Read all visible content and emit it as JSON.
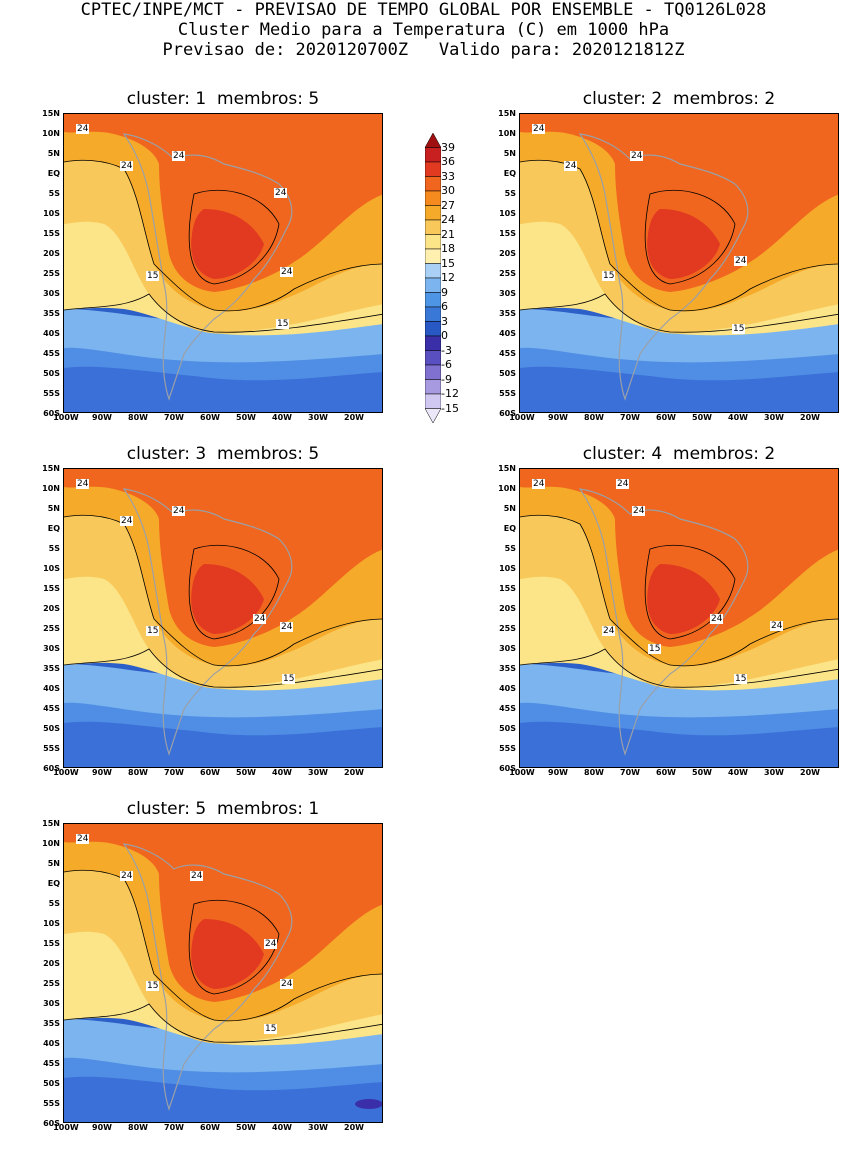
{
  "header": {
    "line1": "CPTEC/INPE/MCT - PREVISAO DE TEMPO GLOBAL POR ENSEMBLE - TQ0126L028",
    "line2": "Cluster Medio para a Temperatura (C) em 1000 hPa",
    "line3": "Previsao de: 2020120700Z   Valido para: 2020121812Z"
  },
  "lat_labels": [
    "15N",
    "10N",
    "5N",
    "EQ",
    "5S",
    "10S",
    "15S",
    "20S",
    "25S",
    "30S",
    "35S",
    "40S",
    "45S",
    "50S",
    "55S",
    "60S"
  ],
  "lon_labels": [
    "100W",
    "90W",
    "80W",
    "70W",
    "60W",
    "50W",
    "40W",
    "30W",
    "20W"
  ],
  "colorbar": {
    "labels": [
      "39",
      "36",
      "33",
      "30",
      "27",
      "24",
      "21",
      "18",
      "15",
      "12",
      "9",
      "6",
      "3",
      "0",
      "-3",
      "-6",
      "-9",
      "-12",
      "-15"
    ],
    "colors": [
      "#a01010",
      "#c82020",
      "#e23a20",
      "#f0661e",
      "#f58a1e",
      "#f6aa2a",
      "#f8c95a",
      "#fce488",
      "#fff0b0",
      "#aad0f5",
      "#7bb4ee",
      "#4f95e6",
      "#3a78d8",
      "#2858c4",
      "#3a2fa8",
      "#5a4fc0",
      "#8070d0",
      "#a89ae0",
      "#d0c8f0",
      "#ece8fa"
    ],
    "top_label": "",
    "bottom_label": ""
  },
  "panels": [
    {
      "title": "cluster: 1  membros: 5",
      "labels": [
        "24",
        "24",
        "24",
        "24",
        "24",
        "15",
        "15"
      ]
    },
    {
      "title": "cluster: 2  membros: 2",
      "labels": [
        "24",
        "24",
        "24",
        "24",
        "15",
        "15"
      ]
    },
    {
      "title": "cluster: 3  membros: 5",
      "labels": [
        "24",
        "24",
        "24",
        "24",
        "24",
        "15",
        "15"
      ]
    },
    {
      "title": "cluster: 4  membros: 2",
      "labels": [
        "24",
        "24",
        "24",
        "24",
        "24",
        "24",
        "15",
        "15"
      ]
    },
    {
      "title": "cluster: 5  membros: 1",
      "labels": [
        "24",
        "24",
        "24",
        "24",
        "24",
        "15",
        "15"
      ]
    }
  ]
}
